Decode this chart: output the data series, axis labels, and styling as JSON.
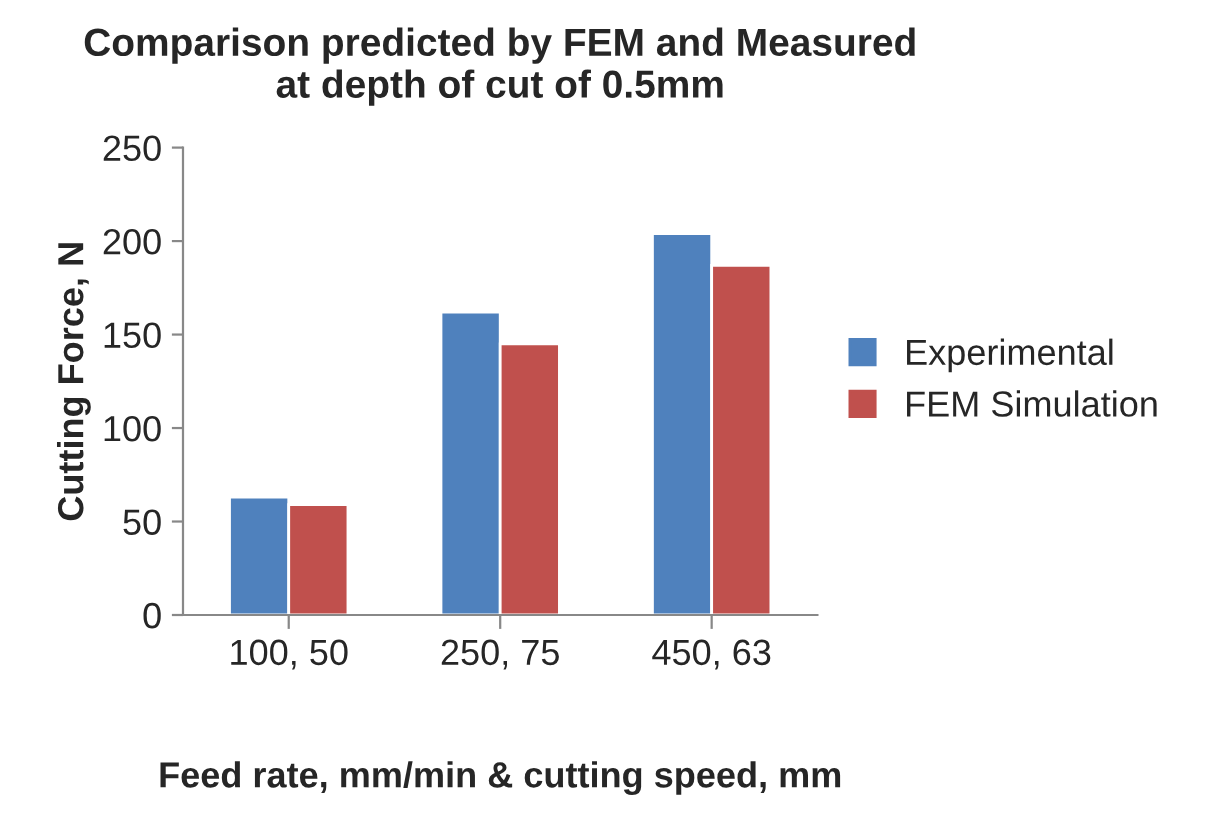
{
  "chart_data": {
    "type": "bar",
    "title": "Comparison predicted by FEM and Measured\nat depth of cut of 0.5mm",
    "xlabel": "Feed rate, mm/min & cutting speed, mm",
    "ylabel": "Cutting Force, N",
    "categories": [
      "100, 50",
      "250, 75",
      "450, 63"
    ],
    "series": [
      {
        "name": "Experimental",
        "color": "#4f81bd",
        "values": [
          63,
          162,
          204
        ]
      },
      {
        "name": "FEM Simulation",
        "color": "#c0504d",
        "values": [
          59,
          145,
          187
        ]
      }
    ],
    "ylim": [
      0,
      250
    ],
    "yticks": [
      0,
      50,
      100,
      150,
      200,
      250
    ],
    "legend": "right"
  }
}
